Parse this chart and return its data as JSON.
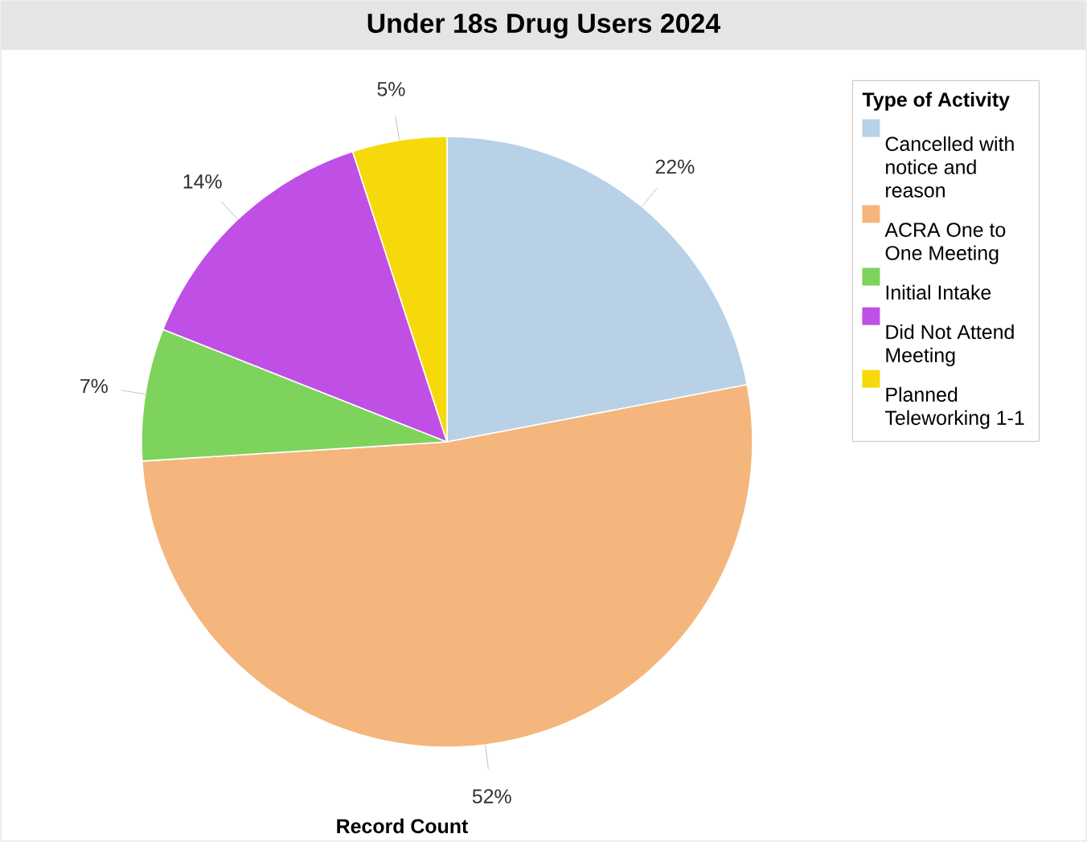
{
  "chart_data": {
    "type": "pie",
    "title": "Under 18s Drug Users 2024",
    "xlabel": "Record Count",
    "legend_title": "Type of Activity",
    "categories": [
      "Cancelled with notice and reason",
      "ACRA One to One Meeting",
      "Initial Intake",
      "Did Not Attend Meeting",
      "Planned Teleworking 1-1"
    ],
    "values": [
      22,
      52,
      7,
      14,
      5
    ],
    "value_labels": [
      "22%",
      "52%",
      "7%",
      "14%",
      "5%"
    ],
    "colors": [
      "#b9d1e6",
      "#f4b67c",
      "#7dd35b",
      "#c04fe6",
      "#f5d90a"
    ],
    "legend": "right"
  }
}
